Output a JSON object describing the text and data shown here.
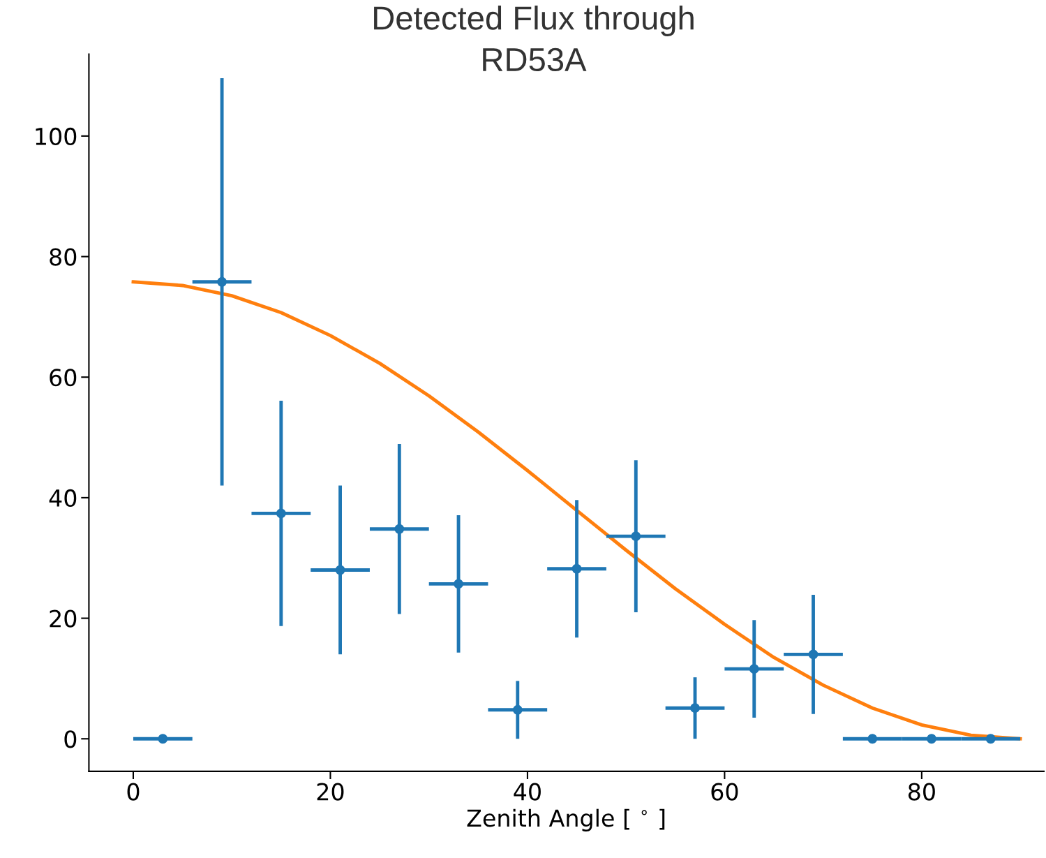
{
  "chart_data": {
    "type": "scatter",
    "title": "Detected Flux through\nRD53A",
    "xlabel": "Zenith Angle [ $^{∘}$ ]",
    "xlim": [
      -4.5,
      92.4
    ],
    "xticks": [
      0,
      20,
      40,
      60,
      80
    ],
    "ylim": [
      -5.4,
      113.6
    ],
    "yticks": [
      0,
      20,
      40,
      60,
      80,
      100
    ],
    "grid": false,
    "series": [
      {
        "color": "#1f77b4",
        "marker": "circle",
        "x": [
          3,
          9,
          15,
          21,
          27,
          33,
          39,
          45,
          51,
          57,
          63,
          69,
          75,
          81,
          87
        ],
        "values": [
          0,
          75.8,
          37.4,
          28.0,
          34.8,
          25.7,
          4.8,
          28.2,
          33.6,
          5.1,
          11.6,
          14.0,
          0,
          0,
          0
        ],
        "errors": [
          null,
          33.8,
          18.7,
          14.0,
          14.1,
          11.4,
          4.8,
          11.4,
          12.6,
          5.1,
          8.1,
          9.9,
          null,
          null,
          null
        ],
        "xerrors": [
          3,
          3,
          3,
          3,
          3,
          3,
          3,
          3,
          3,
          3,
          3,
          3,
          3,
          3,
          3
        ]
      },
      {
        "type": "line",
        "color": "#ff7f0e",
        "marker": "none",
        "line_style": "solid",
        "x": [
          0,
          5,
          10,
          15,
          20,
          25,
          30,
          35,
          40,
          45,
          50,
          55,
          60,
          65,
          70,
          75,
          80,
          85,
          90
        ],
        "values": [
          75.8,
          75.2,
          73.5,
          70.7,
          66.9,
          62.3,
          56.9,
          50.9,
          44.5,
          37.9,
          31.3,
          24.9,
          19.0,
          13.5,
          8.9,
          5.1,
          2.3,
          0.6,
          0
        ]
      }
    ]
  }
}
